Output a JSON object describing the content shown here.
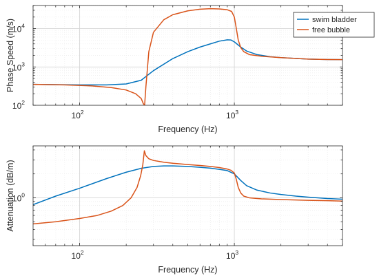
{
  "chart_data": [
    {
      "type": "line",
      "xscale": "log",
      "yscale": "log",
      "xlim": [
        50,
        5000
      ],
      "ylim": [
        100,
        40000
      ],
      "xlabel": "Frequency (Hz)",
      "ylabel": "Phase Speed (m/s)",
      "x_ticks": [
        {
          "value": 100,
          "base": "10",
          "exp": "2"
        },
        {
          "value": 1000,
          "base": "10",
          "exp": "3"
        }
      ],
      "y_ticks": [
        {
          "value": 100,
          "base": "10",
          "exp": "2"
        },
        {
          "value": 1000,
          "base": "10",
          "exp": "3"
        },
        {
          "value": 10000,
          "base": "10",
          "exp": "4"
        }
      ],
      "grid": true,
      "legend_position": "top-right",
      "series": [
        {
          "name": "swim bladder",
          "color": "#0072BD",
          "x": [
            50,
            70,
            100,
            150,
            200,
            250,
            300,
            400,
            500,
            600,
            700,
            800,
            900,
            950,
            1000,
            1100,
            1200,
            1400,
            1700,
            2000,
            3000,
            4000,
            5000
          ],
          "y": [
            350,
            345,
            340,
            340,
            360,
            450,
            800,
            1650,
            2500,
            3300,
            4000,
            4700,
            5100,
            5050,
            4500,
            3300,
            2600,
            2100,
            1850,
            1750,
            1600,
            1560,
            1550
          ]
        },
        {
          "name": "free bubble",
          "color": "#D95319",
          "x": [
            50,
            80,
            120,
            160,
            200,
            230,
            250,
            258,
            263,
            268,
            280,
            300,
            350,
            400,
            500,
            600,
            700,
            800,
            900,
            960,
            1000,
            1030,
            1060,
            1100,
            1150,
            1250,
            1500,
            2000,
            3000,
            4000,
            5000
          ],
          "y": [
            350,
            340,
            320,
            290,
            250,
            200,
            150,
            110,
            100,
            300,
            2500,
            8000,
            17000,
            23000,
            29000,
            32000,
            33000,
            32500,
            31000,
            28000,
            20000,
            10000,
            5000,
            3200,
            2500,
            2100,
            1900,
            1750,
            1600,
            1560,
            1550
          ]
        }
      ]
    },
    {
      "type": "line",
      "xscale": "log",
      "yscale": "log",
      "xlim": [
        50,
        5000
      ],
      "ylim": [
        0.25,
        4.5
      ],
      "xlabel": "Frequency (Hz)",
      "ylabel": "Attenuation (dB/m)",
      "x_ticks": [
        {
          "value": 100,
          "base": "10",
          "exp": "2"
        },
        {
          "value": 1000,
          "base": "10",
          "exp": "3"
        }
      ],
      "y_ticks": [
        {
          "value": 1,
          "base": "10",
          "exp": "0"
        }
      ],
      "grid": true,
      "series": [
        {
          "name": "swim bladder",
          "color": "#0072BD",
          "x": [
            50,
            70,
            100,
            150,
            200,
            250,
            300,
            350,
            400,
            500,
            600,
            700,
            800,
            900,
            1000,
            1100,
            1200,
            1400,
            1700,
            2000,
            2500,
            3000,
            4000,
            5000
          ],
          "y": [
            0.82,
            1.05,
            1.32,
            1.75,
            2.1,
            2.35,
            2.48,
            2.52,
            2.52,
            2.48,
            2.42,
            2.36,
            2.28,
            2.2,
            2.0,
            1.65,
            1.42,
            1.25,
            1.15,
            1.1,
            1.05,
            1.02,
            0.98,
            0.96
          ]
        },
        {
          "name": "free bubble",
          "color": "#D95319",
          "x": [
            50,
            70,
            100,
            130,
            160,
            190,
            215,
            235,
            248,
            256,
            262,
            268,
            280,
            300,
            350,
            400,
            500,
            600,
            700,
            800,
            900,
            950,
            1000,
            1030,
            1060,
            1100,
            1150,
            1250,
            1500,
            2000,
            3000,
            4000,
            5000
          ],
          "y": [
            0.47,
            0.5,
            0.55,
            0.6,
            0.68,
            0.8,
            1.0,
            1.35,
            1.9,
            2.6,
            3.9,
            3.4,
            3.1,
            2.95,
            2.8,
            2.72,
            2.62,
            2.55,
            2.48,
            2.4,
            2.3,
            2.22,
            2.05,
            1.7,
            1.35,
            1.15,
            1.05,
            1.0,
            0.97,
            0.95,
            0.93,
            0.92,
            0.91
          ]
        }
      ]
    }
  ]
}
